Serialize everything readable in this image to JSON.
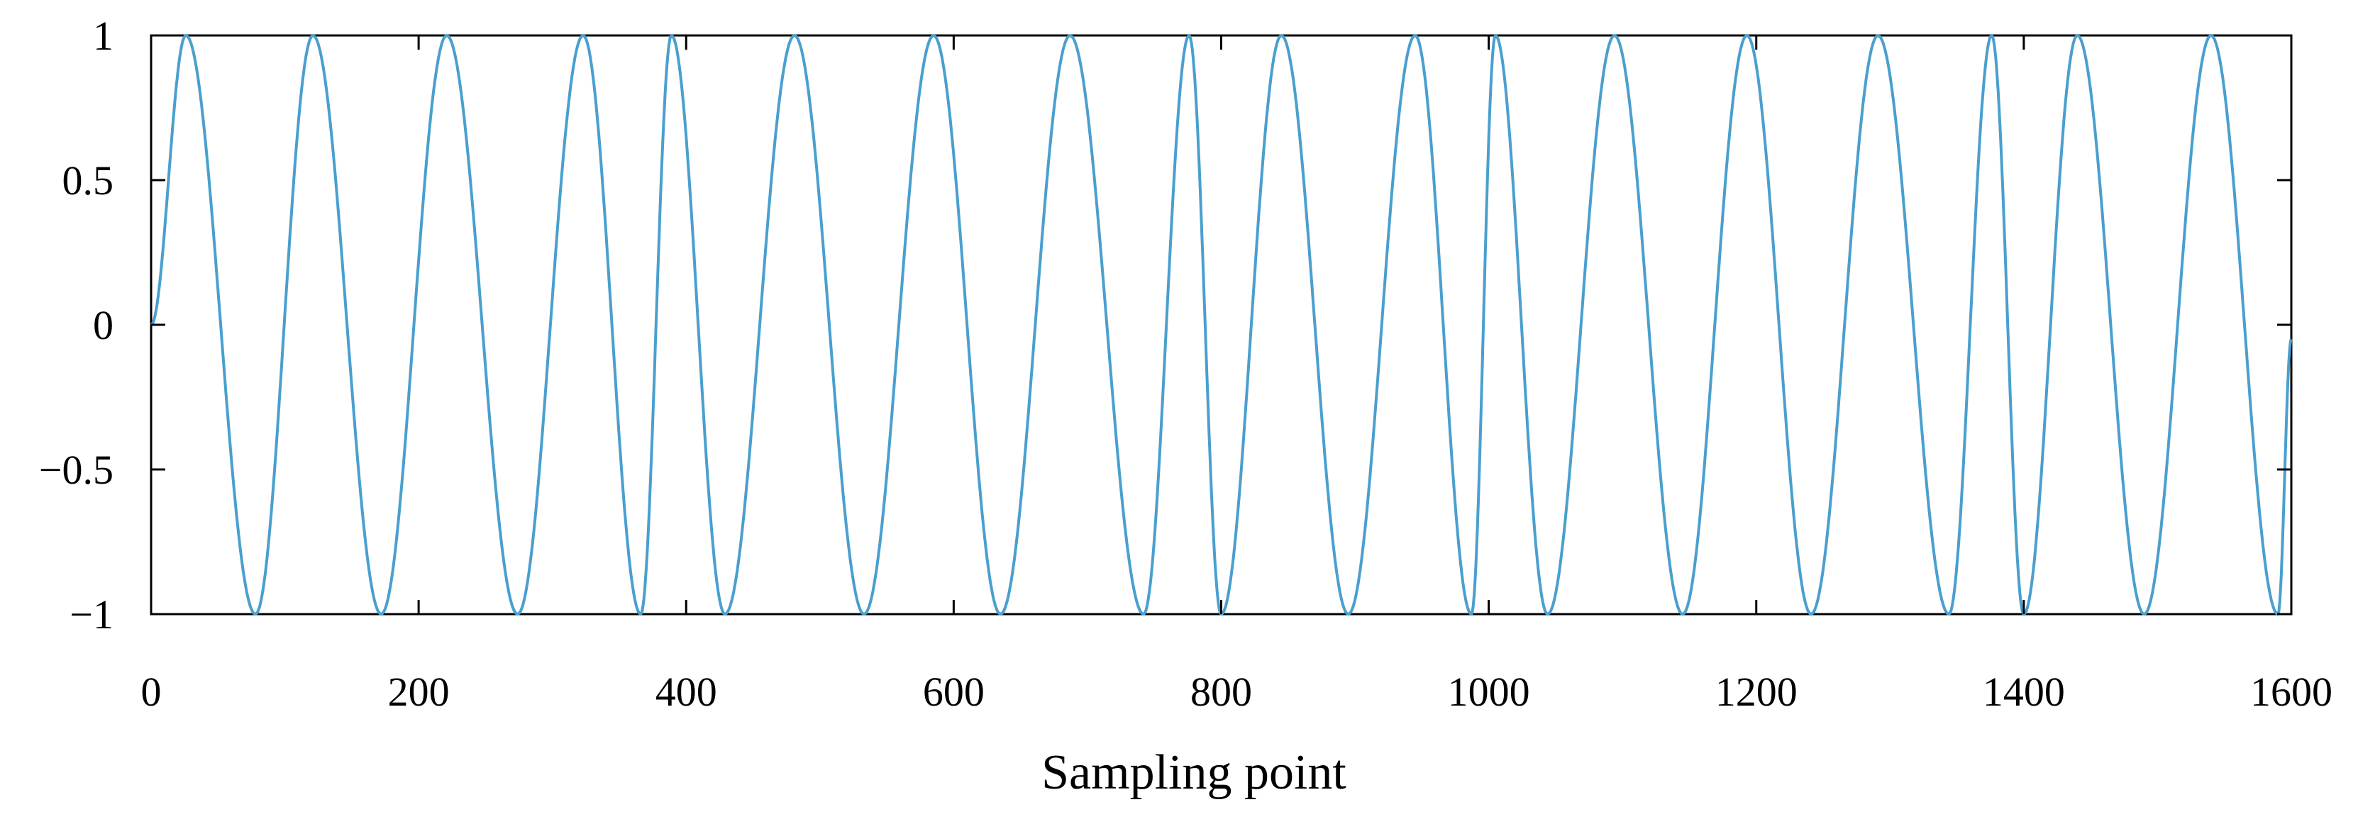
{
  "chart_data": {
    "type": "line",
    "title": "",
    "xlabel": "Sampling point",
    "ylabel": "",
    "xlim": [
      0,
      1600
    ],
    "ylim": [
      -1,
      1
    ],
    "grid": false,
    "legend": "none",
    "x_ticks": [
      0,
      200,
      400,
      600,
      800,
      1000,
      1200,
      1400,
      1600
    ],
    "x_tick_labels": [
      "0",
      "200",
      "400",
      "600",
      "800",
      "1000",
      "1200",
      "1400",
      "1600"
    ],
    "y_ticks": [
      1,
      0.5,
      0,
      -0.5,
      -1
    ],
    "y_tick_labels": [
      "1",
      "0.5",
      "0",
      "−0.5",
      "−1"
    ],
    "line_color": "#4a9fcf",
    "series": [
      {
        "x": [
          0,
          26,
          78,
          121,
          172,
          221,
          274,
          323,
          366,
          389,
          429,
          481,
          533,
          585,
          635,
          687,
          742,
          776,
          800,
          845,
          895,
          945,
          987,
          1005,
          1044,
          1094,
          1145,
          1193,
          1241,
          1291,
          1344,
          1376,
          1400,
          1440,
          1490,
          1540,
          1590,
          1600
        ],
        "y": [
          0,
          1,
          -1,
          1,
          -1,
          1,
          -1,
          1,
          -1,
          1,
          -1,
          1,
          -1,
          1,
          -1,
          1,
          -1,
          1,
          -1,
          1,
          -1,
          1,
          -1,
          1,
          -1,
          1,
          -1,
          1,
          -1,
          1,
          -1,
          1,
          -1,
          1,
          -1,
          1,
          -1,
          -0.05
        ]
      }
    ]
  }
}
